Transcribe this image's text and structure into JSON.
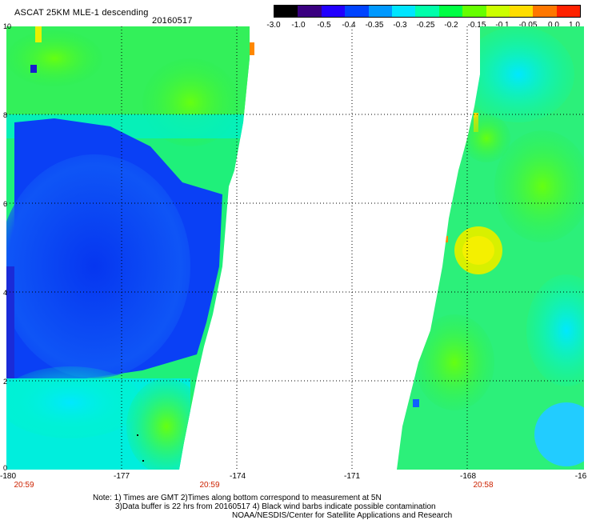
{
  "header": {
    "title": "ASCAT 25KM MLE-1 descending",
    "date": "20160517"
  },
  "colorbar": {
    "labels": [
      "-3.0",
      "-1.0",
      "-0.5",
      "-0.4",
      "-0.35",
      "-0.3",
      "-0.25",
      "-0.2",
      "-0.15",
      "-0.1",
      "-0.05",
      "0.0",
      "1.0"
    ],
    "colors": [
      "#000000",
      "#3a0080",
      "#2200ff",
      "#0044ff",
      "#0099ff",
      "#00e5ff",
      "#00ffaa",
      "#00ff44",
      "#66ff00",
      "#ccff00",
      "#ffdd00",
      "#ff7700",
      "#ff2200"
    ]
  },
  "map": {
    "y_ticks": [
      "10",
      "8",
      "6",
      "4",
      "2",
      "0"
    ],
    "x_ticks": [
      "-180",
      "-177",
      "-174",
      "-171",
      "-168",
      "-16"
    ],
    "times": [
      "20:59",
      "20:59",
      "20:58"
    ]
  },
  "footer": {
    "note1": "Note: 1) Times are GMT 2)Times along bottom correspond to measurement at 5N",
    "note2": "3)Data buffer is 22 hrs from 20160517 4) Black wind barbs indicate possible contamination",
    "note3": "NOAA/NESDIS/Center for Satellite Applications and Research"
  },
  "colors": {
    "swath_blue": "#0a3cf5",
    "swath_cyan": "#00f0e0",
    "swath_green": "#22ee44",
    "grid": "#000000",
    "time_text": "#cc2200"
  }
}
